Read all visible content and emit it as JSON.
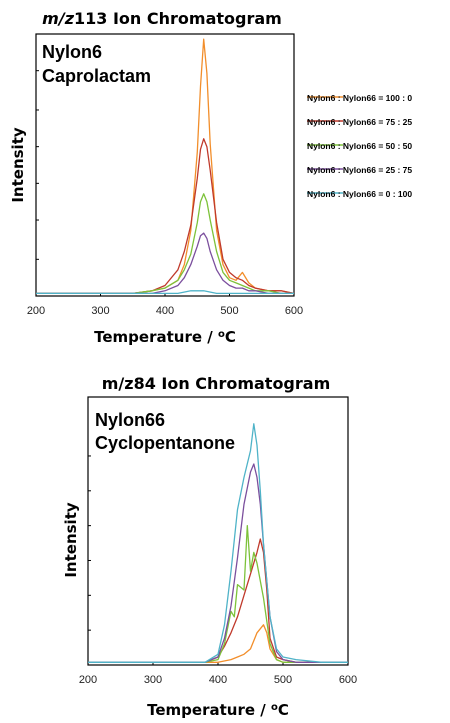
{
  "chart_data": [
    {
      "type": "line",
      "title": {
        "italic": "m/z",
        "rest": "113 Ion Chromatogram"
      },
      "annotation": [
        "Nylon6",
        "Caprolactam"
      ],
      "annotation_color": "#1f5fbf",
      "xlabel": "Temperature / ",
      "xlabel_unit": {
        "sup": "o",
        "text": "C"
      },
      "ylabel": "Intensity",
      "xlim": [
        200,
        600
      ],
      "ylim": [
        0,
        100
      ],
      "xticks": [
        "200",
        "300",
        "400",
        "500",
        "600"
      ],
      "ytick_marks": [
        14,
        29,
        43,
        57,
        71,
        86
      ],
      "grid": false,
      "legend_position": "right",
      "series": [
        {
          "name": "Nylon6 : Nylon66 = 100 : 0",
          "color": "#f28e2b",
          "x": [
            200,
            300,
            350,
            380,
            400,
            420,
            430,
            440,
            450,
            455,
            460,
            465,
            470,
            480,
            490,
            500,
            510,
            520,
            530,
            540,
            560,
            580,
            600
          ],
          "y": [
            1,
            1,
            1,
            2,
            3,
            6,
            12,
            25,
            55,
            80,
            98,
            85,
            58,
            25,
            12,
            7,
            6,
            9,
            5,
            3,
            2,
            2,
            1
          ]
        },
        {
          "name": "Nylon6 : Nylon66 = 75 : 25",
          "color": "#c0392b",
          "x": [
            200,
            300,
            350,
            380,
            400,
            420,
            430,
            440,
            450,
            455,
            460,
            465,
            470,
            480,
            490,
            500,
            510,
            520,
            530,
            540,
            560,
            580,
            600
          ],
          "y": [
            1,
            1,
            1,
            2,
            4,
            10,
            17,
            27,
            45,
            56,
            60,
            57,
            48,
            28,
            14,
            9,
            7,
            6,
            4,
            3,
            2,
            2,
            1
          ]
        },
        {
          "name": "Nylon6 : Nylon66 = 50 : 50",
          "color": "#7dc23a",
          "x": [
            200,
            300,
            350,
            380,
            400,
            420,
            430,
            440,
            450,
            455,
            460,
            465,
            470,
            480,
            490,
            500,
            510,
            520,
            530,
            540,
            560,
            580,
            600
          ],
          "y": [
            1,
            1,
            1,
            2,
            3,
            6,
            10,
            16,
            28,
            36,
            39,
            36,
            29,
            17,
            9,
            6,
            5,
            4,
            3,
            2,
            2,
            1,
            1
          ]
        },
        {
          "name": "Nylon6 : Nylon66 = 25 : 75",
          "color": "#7b4f9d",
          "x": [
            200,
            300,
            350,
            380,
            400,
            420,
            430,
            440,
            450,
            455,
            460,
            465,
            470,
            480,
            490,
            500,
            510,
            520,
            530,
            540,
            560,
            580,
            600
          ],
          "y": [
            1,
            1,
            1,
            1,
            2,
            4,
            7,
            12,
            19,
            23,
            24,
            22,
            17,
            10,
            6,
            4,
            3,
            3,
            2,
            2,
            1,
            1,
            1
          ]
        },
        {
          "name": "Nylon6 : Nylon66 = 0 : 100",
          "color": "#4fb3c8",
          "x": [
            200,
            250,
            300,
            350,
            400,
            420,
            440,
            460,
            480,
            500,
            520,
            540,
            560,
            580,
            600
          ],
          "y": [
            1,
            1,
            1,
            1,
            1,
            1,
            2,
            2,
            1,
            1,
            1,
            1,
            1,
            1,
            1
          ]
        }
      ]
    },
    {
      "type": "line",
      "title": {
        "italic": "",
        "rest": "m/z84 Ion Chromatogram"
      },
      "annotation": [
        "Nylon66",
        "Cyclopentanone"
      ],
      "annotation_color": "#2aa198",
      "xlabel": "Temperature / ",
      "xlabel_unit": {
        "sup": "o",
        "text": "C"
      },
      "ylabel": "Intensity",
      "xlim": [
        200,
        600
      ],
      "ylim": [
        0,
        100
      ],
      "xticks": [
        "200",
        "300",
        "400",
        "500",
        "600"
      ],
      "ytick_marks": [
        13,
        26,
        39,
        52,
        65,
        78
      ],
      "grid": false,
      "legend_position": "none",
      "series": [
        {
          "name": "Nylon6 : Nylon66 = 100 : 0",
          "color": "#f28e2b",
          "x": [
            200,
            300,
            380,
            400,
            420,
            430,
            440,
            450,
            460,
            470,
            475,
            480,
            490,
            500,
            520,
            560,
            600
          ],
          "y": [
            1,
            1,
            1,
            1,
            2,
            3,
            4,
            6,
            12,
            15,
            12,
            6,
            2,
            1,
            1,
            1,
            1
          ]
        },
        {
          "name": "Nylon6 : Nylon66 = 75 : 25",
          "color": "#c0392b",
          "x": [
            200,
            300,
            380,
            400,
            410,
            420,
            430,
            440,
            450,
            460,
            465,
            470,
            475,
            480,
            490,
            500,
            520,
            560,
            600
          ],
          "y": [
            1,
            1,
            1,
            3,
            7,
            12,
            18,
            26,
            34,
            42,
            47,
            42,
            28,
            10,
            3,
            2,
            1,
            1,
            1
          ]
        },
        {
          "name": "Nylon6 : Nylon66 = 50 : 50",
          "color": "#7dc23a",
          "x": [
            200,
            300,
            380,
            400,
            410,
            420,
            425,
            430,
            440,
            445,
            450,
            455,
            460,
            470,
            480,
            490,
            500,
            520,
            560,
            600
          ],
          "y": [
            1,
            1,
            1,
            2,
            8,
            20,
            18,
            30,
            28,
            52,
            35,
            42,
            38,
            25,
            8,
            2,
            1,
            1,
            1,
            1
          ]
        },
        {
          "name": "Nylon6 : Nylon66 = 25 : 75",
          "color": "#7b4f9d",
          "x": [
            200,
            300,
            380,
            400,
            410,
            420,
            430,
            440,
            450,
            455,
            460,
            465,
            470,
            480,
            490,
            500,
            520,
            560,
            600
          ],
          "y": [
            1,
            1,
            1,
            3,
            10,
            22,
            40,
            60,
            72,
            75,
            70,
            60,
            45,
            18,
            5,
            2,
            1,
            1,
            1
          ]
        },
        {
          "name": "Nylon6 : Nylon66 = 0 : 100",
          "color": "#4fb3c8",
          "x": [
            200,
            300,
            380,
            400,
            410,
            420,
            430,
            440,
            450,
            455,
            460,
            465,
            470,
            480,
            490,
            500,
            520,
            560,
            600
          ],
          "y": [
            1,
            1,
            1,
            4,
            15,
            35,
            58,
            70,
            80,
            90,
            82,
            65,
            45,
            18,
            6,
            3,
            2,
            1,
            1
          ]
        }
      ]
    }
  ]
}
